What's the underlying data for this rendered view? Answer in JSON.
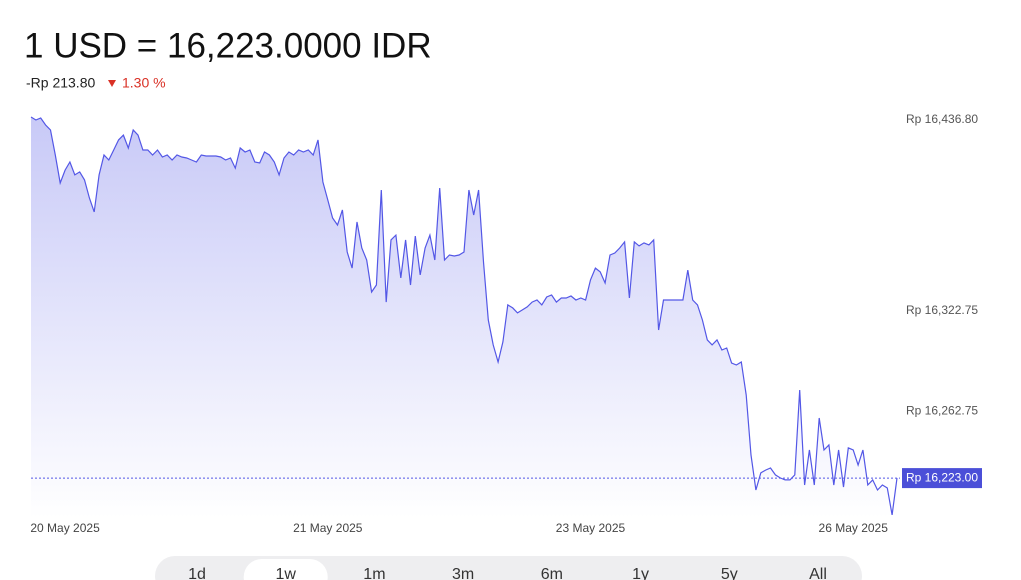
{
  "chart_data": {
    "type": "area",
    "title": "1 USD = 16,223.0000 IDR",
    "change": "-Rp 213.80",
    "change_pct": "1.30 %",
    "categories": [
      null,
      null,
      null,
      null,
      null,
      null,
      null,
      "20 May 2025",
      null,
      null,
      null,
      null,
      null,
      null,
      null,
      null,
      null,
      null,
      null,
      null,
      null,
      null,
      null,
      null,
      null,
      null,
      null,
      null,
      null,
      null,
      null,
      null,
      null,
      null,
      null,
      null,
      null,
      null,
      null,
      null,
      null,
      null,
      null,
      null,
      null,
      null,
      null,
      null,
      null,
      null,
      null,
      null,
      null,
      null,
      null,
      null,
      null,
      null,
      null,
      null,
      null,
      "21 May 2025",
      null,
      null,
      null,
      null,
      null,
      null,
      null,
      null,
      null,
      null,
      null,
      null,
      null,
      null,
      null,
      null,
      null,
      null,
      null,
      null,
      null,
      null,
      null,
      null,
      null,
      null,
      null,
      null,
      null,
      null,
      null,
      null,
      null,
      null,
      null,
      null,
      null,
      null,
      null,
      null,
      null,
      null,
      null,
      null,
      null,
      null,
      null,
      null,
      null,
      null,
      null,
      null,
      null,
      "23 May 2025",
      null,
      null,
      null,
      null,
      null,
      null,
      null,
      null,
      null,
      null,
      null,
      null,
      null,
      null,
      null,
      null,
      null,
      null,
      null,
      null,
      null,
      null,
      null,
      null,
      null,
      null,
      null,
      null,
      null,
      null,
      null,
      null,
      null,
      null,
      null,
      null,
      null,
      null,
      null,
      null,
      null,
      null,
      null,
      null,
      null,
      null,
      null,
      null,
      null,
      null,
      null,
      null,
      null,
      "26 May 2025",
      null,
      null,
      null,
      null,
      null,
      null,
      null,
      null,
      null
    ],
    "values": [
      16438.6,
      16436.8,
      16438.0,
      16433.8,
      16430.8,
      16415.9,
      16399.2,
      16406.9,
      16411.7,
      16404.0,
      16405.8,
      16401.0,
      16390.2,
      16381.9,
      16404.0,
      16415.9,
      16412.9,
      16418.9,
      16424.9,
      16427.8,
      16420.1,
      16430.8,
      16427.8,
      16418.9,
      16418.9,
      16415.9,
      16418.9,
      16414.7,
      16415.9,
      16412.9,
      16415.9,
      16414.7,
      16414.1,
      16412.9,
      16411.7,
      16415.9,
      16415.3,
      16415.3,
      16415.3,
      16414.7,
      16412.9,
      16414.1,
      16408.1,
      16420.1,
      16417.7,
      16418.9,
      16411.7,
      16411.1,
      16417.7,
      16415.9,
      16411.7,
      16404.0,
      16414.1,
      16417.7,
      16415.9,
      16418.9,
      16417.7,
      16418.9,
      16415.9,
      16424.9,
      16399.8,
      16389.0,
      16378.3,
      16374.1,
      16383.1,
      16358.0,
      16348.4,
      16375.9,
      16360.4,
      16353.2,
      16334.1,
      16338.3,
      16395.0,
      16328.1,
      16365.2,
      16368.1,
      16342.5,
      16365.2,
      16338.3,
      16367.5,
      16344.3,
      16360.4,
      16368.1,
      16353.2,
      16396.2,
      16353.2,
      16356.2,
      16355.6,
      16356.2,
      16358.0,
      16395.0,
      16380.1,
      16395.0,
      16352.0,
      16317.4,
      16302.5,
      16292.3,
      16304.3,
      16326.4,
      16324.6,
      16321.6,
      16323.4,
      16325.2,
      16328.1,
      16329.3,
      16326.4,
      16331.1,
      16332.3,
      16328.1,
      16330.5,
      16330.5,
      16331.7,
      16329.3,
      16330.5,
      16329.3,
      16341.3,
      16348.4,
      16346.1,
      16339.5,
      16356.2,
      16357.4,
      16360.4,
      16364.0,
      16330.5,
      16364.0,
      16361.6,
      16363.4,
      16362.2,
      16365.2,
      16311.4,
      16329.3,
      16329.3,
      16329.3,
      16329.3,
      16329.3,
      16347.2,
      16329.3,
      16326.4,
      16317.4,
      16305.5,
      16302.5,
      16305.5,
      16299.5,
      16300.7,
      16291.7,
      16290.5,
      16292.3,
      16272.6,
      16236.8,
      16215.9,
      16226.1,
      16227.8,
      16229.0,
      16224.9,
      16223.1,
      16221.9,
      16221.9,
      16224.9,
      16275.6,
      16218.9,
      16239.8,
      16218.9,
      16258.9,
      16239.8,
      16242.8,
      16218.9,
      16239.8,
      16217.7,
      16241.0,
      16239.8,
      16230.8,
      16239.8,
      16218.9,
      16221.9,
      16215.9,
      16218.9,
      16217.1,
      16201.0,
      16223.0
    ],
    "color": "#5357e6",
    "ylim": [
      16199,
      16443
    ],
    "yticks": [
      {
        "value": 16436.8,
        "label": "Rp 16,436.80"
      },
      {
        "value": 16322.75,
        "label": "Rp 16,322.75"
      },
      {
        "value": 16262.75,
        "label": "Rp 16,262.75"
      }
    ],
    "current": {
      "value": 16223.0,
      "label": "Rp 16,223.00"
    },
    "grid": false
  },
  "tabs": {
    "items": [
      "1d",
      "1w",
      "1m",
      "3m",
      "6m",
      "1y",
      "5y",
      "All"
    ],
    "selected": 1
  }
}
